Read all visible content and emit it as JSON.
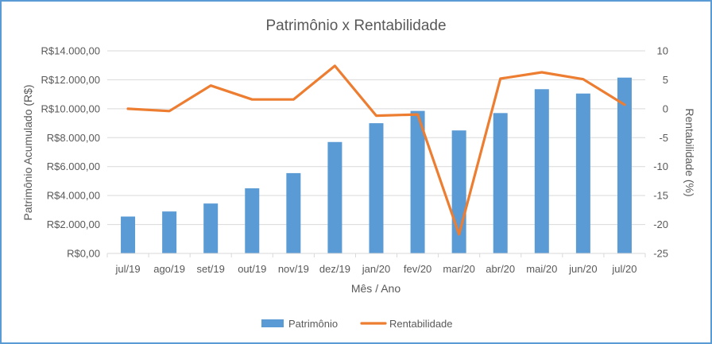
{
  "chart_data": {
    "type": "bar+line",
    "title": "Patrimônio x Rentabilidade",
    "xlabel": "Mês / Ano",
    "ylabel_left": "Patrimônio Acumulado (R$)",
    "ylabel_right": "Rentabilidade (%)",
    "categories": [
      "jul/19",
      "ago/19",
      "set/19",
      "out/19",
      "nov/19",
      "dez/19",
      "jan/20",
      "fev/20",
      "mar/20",
      "abr/20",
      "mai/20",
      "jun/20",
      "jul/20"
    ],
    "y_left_ticks": [
      "R$0,00",
      "R$2.000,00",
      "R$4.000,00",
      "R$6.000,00",
      "R$8.000,00",
      "R$10.000,00",
      "R$12.000,00",
      "R$14.000,00"
    ],
    "y_left_range": [
      0,
      14000
    ],
    "y_right_ticks": [
      "-25",
      "-20",
      "-15",
      "-10",
      "-5",
      "0",
      "5",
      "10"
    ],
    "y_right_range": [
      -25,
      10
    ],
    "series": [
      {
        "name": "Patrimônio",
        "kind": "bar",
        "axis": "left",
        "color": "#5b9bd5",
        "values": [
          2550,
          2900,
          3450,
          4500,
          5550,
          7700,
          9000,
          9850,
          8500,
          9700,
          11350,
          11050,
          12150
        ]
      },
      {
        "name": "Rentabilidade",
        "kind": "line",
        "axis": "right",
        "color": "#ed7d31",
        "values": [
          0.0,
          -0.4,
          4.0,
          1.6,
          1.6,
          7.4,
          -1.2,
          -1.0,
          -21.7,
          5.2,
          6.3,
          5.1,
          0.7
        ]
      }
    ],
    "grid": true,
    "legend": "bottom"
  }
}
